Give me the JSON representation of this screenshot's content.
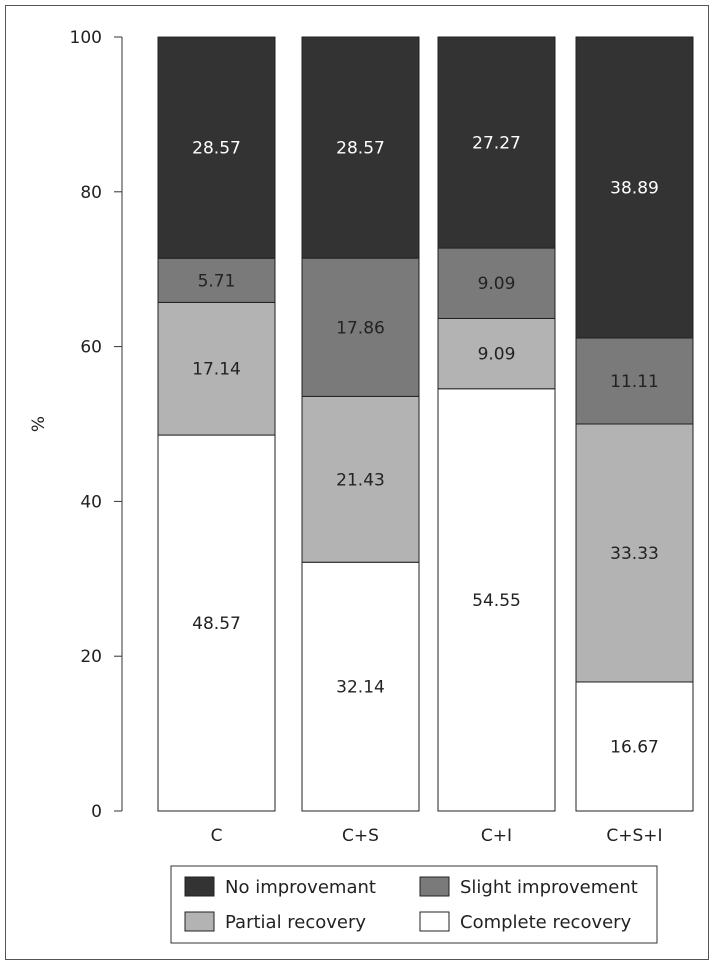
{
  "chart_data": {
    "type": "bar",
    "stacked": true,
    "percent_stacked": true,
    "ylabel": "%",
    "ylim": [
      0,
      100
    ],
    "yticks": [
      "0",
      "20",
      "40",
      "60",
      "80",
      "100"
    ],
    "categories": [
      "C",
      "C+S",
      "C+I",
      "C+S+I"
    ],
    "series": [
      {
        "name": "Complete recovery",
        "color": "#ffffff",
        "values": [
          48.57,
          32.14,
          54.55,
          16.67
        ],
        "labels": [
          "48.57",
          "32.14",
          "54.55",
          "16.67"
        ]
      },
      {
        "name": "Partial recovery",
        "color": "#b3b3b3",
        "values": [
          17.14,
          21.43,
          9.09,
          33.33
        ],
        "labels": [
          "17.14",
          "21.43",
          "9.09",
          "33.33"
        ]
      },
      {
        "name": "Slight improvement",
        "color": "#7a7a7a",
        "values": [
          5.71,
          17.86,
          9.09,
          11.11
        ],
        "labels": [
          "5.71",
          "17.86",
          "9.09",
          "11.11"
        ]
      },
      {
        "name": "No improvemant",
        "color": "#333333",
        "values": [
          28.57,
          28.57,
          27.27,
          38.89
        ],
        "labels": [
          "28.57",
          "28.57",
          "27.27",
          "38.89"
        ]
      }
    ],
    "legend": {
      "position": "bottom",
      "rows": [
        [
          "No improvemant",
          "Slight improvement"
        ],
        [
          "Partial recovery",
          "Complete recovery"
        ]
      ]
    }
  }
}
